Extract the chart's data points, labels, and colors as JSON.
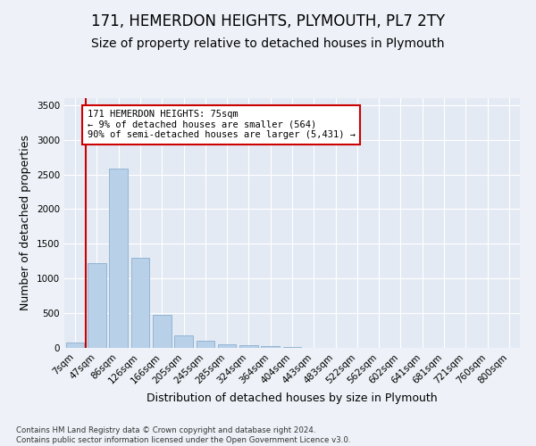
{
  "title": "171, HEMERDON HEIGHTS, PLYMOUTH, PL7 2TY",
  "subtitle": "Size of property relative to detached houses in Plymouth",
  "xlabel": "Distribution of detached houses by size in Plymouth",
  "ylabel": "Number of detached properties",
  "categories": [
    "7sqm",
    "47sqm",
    "86sqm",
    "126sqm",
    "166sqm",
    "205sqm",
    "245sqm",
    "285sqm",
    "324sqm",
    "364sqm",
    "404sqm",
    "443sqm",
    "483sqm",
    "522sqm",
    "562sqm",
    "602sqm",
    "641sqm",
    "681sqm",
    "721sqm",
    "760sqm",
    "800sqm"
  ],
  "values": [
    75,
    1220,
    2580,
    1305,
    480,
    185,
    105,
    55,
    45,
    30,
    15,
    5,
    2,
    1,
    0,
    0,
    0,
    0,
    0,
    0,
    0
  ],
  "bar_color": "#b8d0e8",
  "bar_edge_color": "#8aafd0",
  "vline_color": "#cc0000",
  "annotation_text": "171 HEMERDON HEIGHTS: 75sqm\n← 9% of detached houses are smaller (564)\n90% of semi-detached houses are larger (5,431) →",
  "annotation_box_color": "#ffffff",
  "annotation_box_edge": "#cc0000",
  "ylim": [
    0,
    3600
  ],
  "yticks": [
    0,
    500,
    1000,
    1500,
    2000,
    2500,
    3000,
    3500
  ],
  "bg_color": "#eef2f8",
  "plot_bg_color": "#e4eaf4",
  "grid_color": "#ffffff",
  "footer": "Contains HM Land Registry data © Crown copyright and database right 2024.\nContains public sector information licensed under the Open Government Licence v3.0.",
  "title_fontsize": 12,
  "subtitle_fontsize": 10,
  "label_fontsize": 9,
  "tick_fontsize": 7.5
}
